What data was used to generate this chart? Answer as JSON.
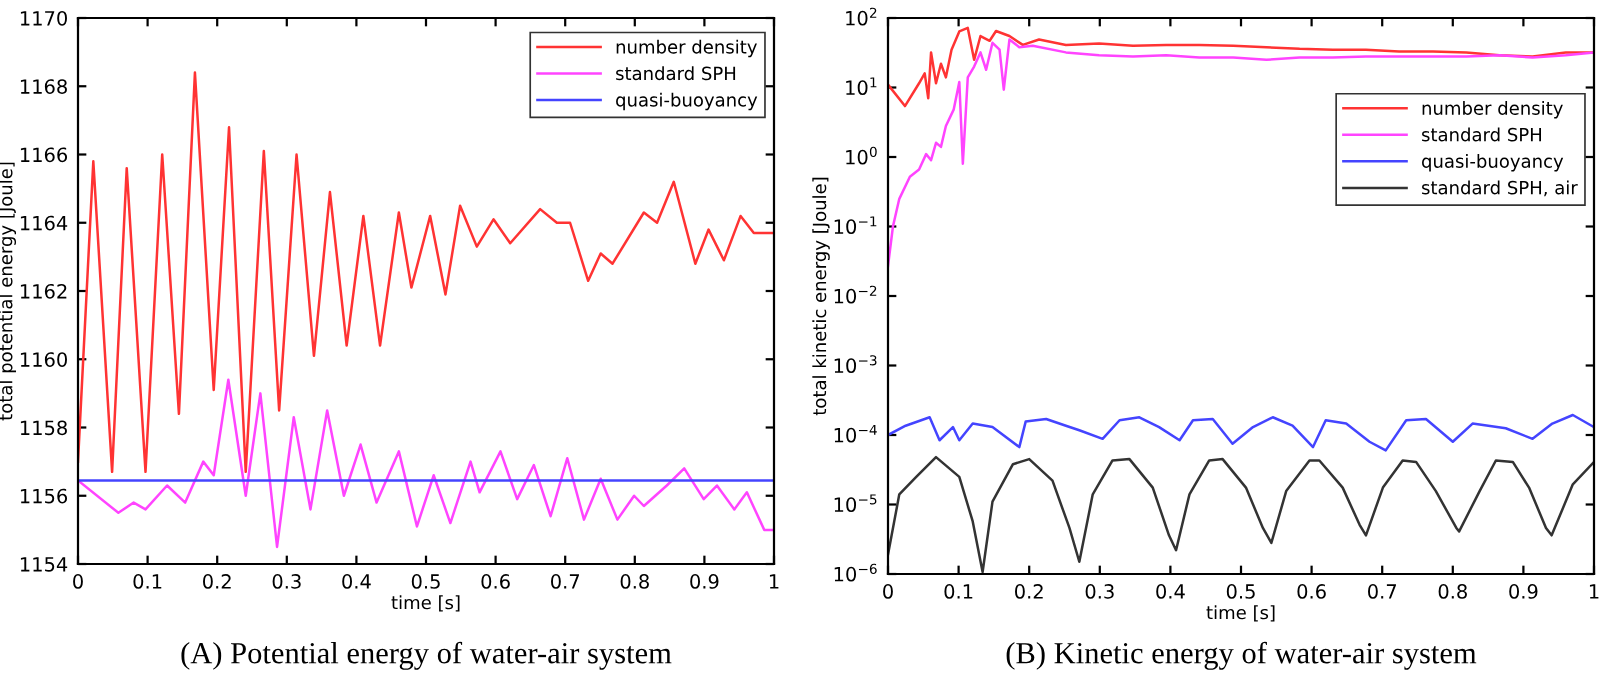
{
  "chart_data": [
    {
      "type": "line",
      "xlabel": "time [s]",
      "ylabel": "total potential energy [Joule]",
      "annotations": [
        "(A) Potential energy of water-air system"
      ],
      "xlim": [
        0,
        1
      ],
      "ylim": [
        1154,
        1170
      ],
      "xticks": [
        0,
        {
          "value": 0.1,
          "label": "0.1"
        },
        {
          "value": 0.2,
          "label": "0.2"
        },
        {
          "value": 0.3,
          "label": "0.3"
        },
        {
          "value": 0.4,
          "label": "0.4"
        },
        {
          "value": 0.5,
          "label": "0.5"
        },
        {
          "value": 0.6,
          "label": "0.6"
        },
        {
          "value": 0.7,
          "label": "0.7"
        },
        {
          "value": 0.8,
          "label": "0.8"
        },
        {
          "value": 0.9,
          "label": "0.9"
        },
        1
      ],
      "yticks": [
        1154,
        1156,
        1158,
        1160,
        1162,
        1164,
        1166,
        1168,
        1170
      ],
      "legend": "top right",
      "grid": false,
      "marker": "none",
      "line_style": "solid",
      "series": [
        {
          "name": "number density",
          "color": "#ff3333",
          "x": [
            0,
            0.022,
            0.049,
            0.07,
            0.097,
            0.121,
            0.145,
            0.168,
            0.195,
            0.217,
            0.241,
            0.267,
            0.289,
            0.314,
            0.339,
            0.362,
            0.386,
            0.41,
            0.434,
            0.461,
            0.479,
            0.506,
            0.528,
            0.549,
            0.573,
            0.597,
            0.621,
            0.664,
            0.688,
            0.707,
            0.733,
            0.751,
            0.768,
            0.813,
            0.832,
            0.856,
            0.887,
            0.906,
            0.928,
            0.952,
            0.971,
            1.0
          ],
          "values": [
            1157.0,
            1165.8,
            1156.7,
            1165.6,
            1156.7,
            1166.0,
            1158.4,
            1168.4,
            1159.1,
            1166.8,
            1156.7,
            1166.1,
            1158.5,
            1166.0,
            1160.1,
            1164.9,
            1160.4,
            1164.2,
            1160.4,
            1164.3,
            1162.1,
            1164.2,
            1161.9,
            1164.5,
            1163.3,
            1164.1,
            1163.4,
            1164.4,
            1164.0,
            1164.0,
            1162.3,
            1163.1,
            1162.8,
            1164.3,
            1164.0,
            1165.2,
            1162.8,
            1163.8,
            1162.9,
            1164.2,
            1163.7,
            1163.7
          ]
        },
        {
          "name": "standard SPH",
          "color": "#ff44ff",
          "x": [
            0,
            0.058,
            0.08,
            0.097,
            0.128,
            0.154,
            0.18,
            0.195,
            0.216,
            0.241,
            0.262,
            0.286,
            0.31,
            0.334,
            0.358,
            0.382,
            0.406,
            0.429,
            0.461,
            0.487,
            0.511,
            0.535,
            0.564,
            0.577,
            0.607,
            0.631,
            0.655,
            0.679,
            0.703,
            0.727,
            0.751,
            0.775,
            0.799,
            0.813,
            0.846,
            0.871,
            0.899,
            0.918,
            0.943,
            0.961,
            0.986,
            1.0
          ],
          "values": [
            1156.45,
            1155.5,
            1155.8,
            1155.6,
            1156.3,
            1155.8,
            1157.0,
            1156.6,
            1159.4,
            1156.0,
            1159.0,
            1154.5,
            1158.3,
            1155.6,
            1158.5,
            1156.0,
            1157.5,
            1155.8,
            1157.3,
            1155.1,
            1156.6,
            1155.2,
            1157.0,
            1156.1,
            1157.3,
            1155.9,
            1156.9,
            1155.4,
            1157.1,
            1155.3,
            1156.5,
            1155.3,
            1156.0,
            1155.7,
            1156.3,
            1156.8,
            1155.9,
            1156.3,
            1155.6,
            1156.1,
            1155.0,
            1155.0
          ]
        },
        {
          "name": "quasi-buoyancy",
          "color": "#4444ff",
          "x": [
            0,
            0.5,
            1.0
          ],
          "values": [
            1156.45,
            1156.45,
            1156.45
          ]
        }
      ]
    },
    {
      "type": "line",
      "xlabel": "time [s]",
      "ylabel": "total kinetic energy [Joule]",
      "annotations": [
        "(B) Kinetic energy of water-air system"
      ],
      "log": "y",
      "xlim": [
        0,
        1
      ],
      "ylim": [
        1e-06,
        100
      ],
      "xticks": [
        0,
        {
          "value": 0.1,
          "label": "0.1"
        },
        {
          "value": 0.2,
          "label": "0.2"
        },
        {
          "value": 0.3,
          "label": "0.3"
        },
        {
          "value": 0.4,
          "label": "0.4"
        },
        {
          "value": 0.5,
          "label": "0.5"
        },
        {
          "value": 0.6,
          "label": "0.6"
        },
        {
          "value": 0.7,
          "label": "0.7"
        },
        {
          "value": 0.8,
          "label": "0.8"
        },
        {
          "value": 0.9,
          "label": "0.9"
        },
        1
      ],
      "yticks": [
        {
          "value": 1e-06,
          "label": "10$^{−6}$"
        },
        {
          "value": 1e-05,
          "label": "10$^{−5}$"
        },
        {
          "value": 0.0001,
          "label": "10$^{−4}$"
        },
        {
          "value": 0.001,
          "label": "10$^{−3}$"
        },
        {
          "value": 0.01,
          "label": "10$^{−2}$"
        },
        {
          "value": 0.1,
          "label": "10$^{−1}$"
        },
        {
          "value": 1,
          "label": "10$^{0}$"
        },
        {
          "value": 10,
          "label": "10$^{1}$"
        },
        {
          "value": 100,
          "label": "10$^{2}$"
        }
      ],
      "legend": "top right",
      "grid": false,
      "marker": "none",
      "line_style": "solid",
      "series": [
        {
          "name": "number density",
          "color": "#ff3333",
          "x": [
            0,
            0.024,
            0.044,
            0.052,
            0.057,
            0.061,
            0.068,
            0.075,
            0.082,
            0.09,
            0.101,
            0.113,
            0.122,
            0.131,
            0.144,
            0.153,
            0.172,
            0.191,
            0.214,
            0.252,
            0.299,
            0.347,
            0.394,
            0.441,
            0.489,
            0.536,
            0.583,
            0.63,
            0.677,
            0.724,
            0.772,
            0.819,
            0.866,
            0.913,
            0.96,
            1.0
          ],
          "values": [
            11,
            5.4,
            11.5,
            16,
            7,
            32,
            11.5,
            22,
            14,
            35,
            64,
            72,
            25,
            55,
            47,
            65,
            55,
            41,
            49,
            41,
            43,
            40,
            41,
            41,
            40,
            38,
            36,
            35,
            35,
            33,
            33,
            32,
            29,
            28,
            32,
            32
          ]
        },
        {
          "name": "standard SPH",
          "color": "#ff44ff",
          "x": [
            0,
            0.007,
            0.016,
            0.031,
            0.044,
            0.054,
            0.061,
            0.068,
            0.075,
            0.082,
            0.093,
            0.101,
            0.106,
            0.113,
            0.122,
            0.131,
            0.139,
            0.148,
            0.158,
            0.164,
            0.172,
            0.186,
            0.205,
            0.252,
            0.299,
            0.347,
            0.394,
            0.441,
            0.489,
            0.536,
            0.583,
            0.63,
            0.677,
            0.724,
            0.772,
            0.819,
            0.866,
            0.913,
            0.96,
            1.0
          ],
          "values": [
            0.027,
            0.1,
            0.25,
            0.52,
            0.66,
            1.1,
            0.9,
            1.6,
            1.4,
            2.8,
            4.8,
            12,
            0.8,
            14,
            20,
            32,
            18,
            44,
            35,
            9.3,
            49,
            38,
            40,
            32,
            29,
            28,
            29,
            27,
            27,
            25,
            27,
            27,
            28,
            28,
            28,
            28,
            29,
            27,
            29,
            32
          ]
        },
        {
          "name": "quasi-buoyancy",
          "color": "#4444ff",
          "x": [
            0,
            0.025,
            0.059,
            0.073,
            0.092,
            0.101,
            0.12,
            0.148,
            0.186,
            0.195,
            0.224,
            0.252,
            0.271,
            0.304,
            0.328,
            0.356,
            0.384,
            0.413,
            0.432,
            0.46,
            0.488,
            0.517,
            0.545,
            0.573,
            0.602,
            0.62,
            0.649,
            0.682,
            0.705,
            0.734,
            0.762,
            0.8,
            0.828,
            0.875,
            0.913,
            0.941,
            0.97,
            1.0
          ],
          "values": [
            0.0001,
            0.000136,
            0.00018,
            8.4e-05,
            0.00013,
            8.4e-05,
            0.000146,
            0.00013,
            6.7e-05,
            0.000156,
            0.00017,
            0.000136,
            0.000117,
            8.8e-05,
            0.000163,
            0.00018,
            0.00013,
            8.4e-05,
            0.000163,
            0.00017,
            7.5e-05,
            0.00013,
            0.00018,
            0.000136,
            6.7e-05,
            0.000163,
            0.000146,
            8e-05,
            6e-05,
            0.000163,
            0.00017,
            8e-05,
            0.000146,
            0.000125,
            8.8e-05,
            0.000146,
            0.000194,
            0.00013
          ]
        },
        {
          "name": "standard SPH, air",
          "color": "#333333",
          "x": [
            0,
            0.016,
            0.04,
            0.068,
            0.101,
            0.12,
            0.134,
            0.148,
            0.177,
            0.2,
            0.233,
            0.257,
            0.271,
            0.29,
            0.318,
            0.342,
            0.375,
            0.398,
            0.408,
            0.427,
            0.455,
            0.474,
            0.507,
            0.531,
            0.543,
            0.564,
            0.597,
            0.611,
            0.644,
            0.668,
            0.677,
            0.701,
            0.729,
            0.748,
            0.776,
            0.805,
            0.809,
            0.838,
            0.861,
            0.885,
            0.908,
            0.932,
            0.94,
            0.97,
            1.0
          ],
          "values": [
            1.9e-06,
            1.4e-05,
            2.5e-05,
            4.8e-05,
            2.5e-05,
            5.7e-06,
            1.07e-06,
            1.1e-05,
            3.8e-05,
            4.5e-05,
            2.2e-05,
            4.6e-06,
            1.5e-06,
            1.4e-05,
            4.3e-05,
            4.5e-05,
            1.75e-05,
            3.6e-06,
            2.2e-06,
            1.4e-05,
            4.3e-05,
            4.5e-05,
            1.75e-05,
            4.6e-06,
            2.8e-06,
            1.56e-05,
            4.3e-05,
            4.3e-05,
            1.75e-05,
            5.1e-06,
            3.6e-06,
            1.75e-05,
            4.3e-05,
            4.1e-05,
            1.56e-05,
            4.6e-06,
            4.1e-06,
            1.56e-05,
            4.3e-05,
            4.1e-05,
            1.75e-05,
            4.6e-06,
            3.6e-06,
            1.95e-05,
            4.1e-05
          ]
        }
      ]
    }
  ]
}
